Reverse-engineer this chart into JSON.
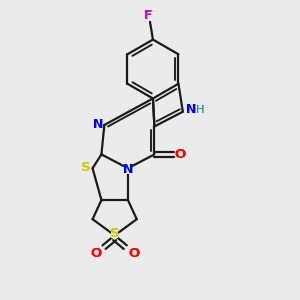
{
  "bg_color": "#ebebeb",
  "bond_color": "#1a1a1a",
  "atom_colors": {
    "N": "#0000ff",
    "NH": "#0000ff",
    "H": "#008888",
    "O": "#ff0000",
    "S": "#cccc00",
    "F": "#cc00cc",
    "C": "#1a1a1a"
  },
  "fig_size": [
    3.0,
    3.0
  ],
  "dpi": 100
}
